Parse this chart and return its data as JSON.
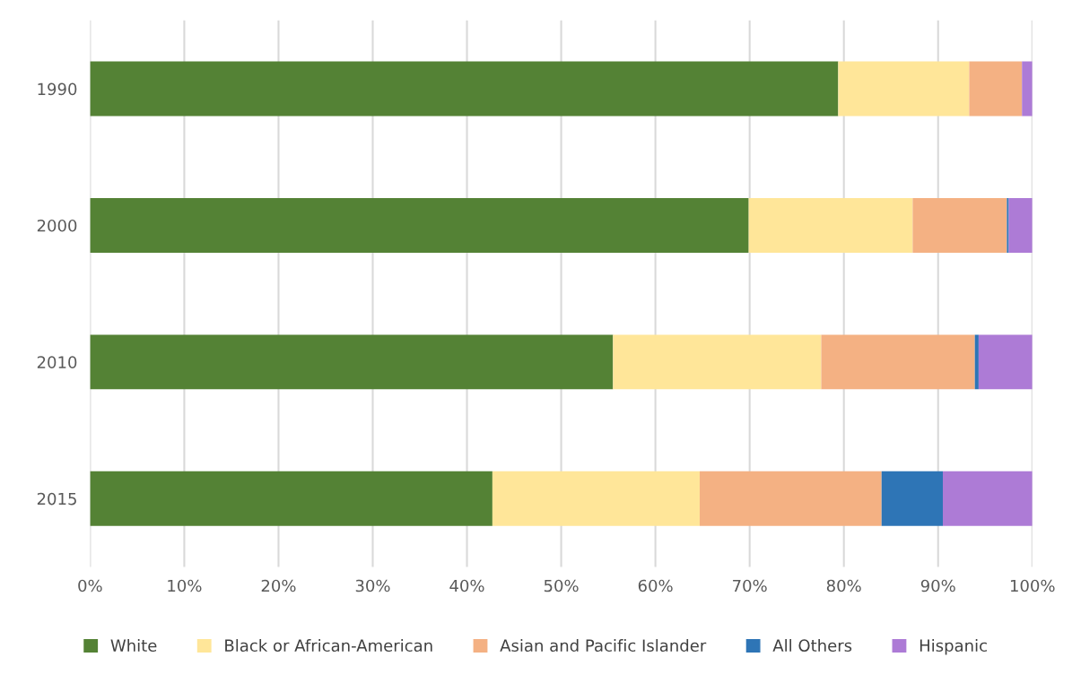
{
  "chart_data": {
    "type": "bar",
    "orientation": "horizontal",
    "stacked": true,
    "categories": [
      "1990",
      "2000",
      "2010",
      "2015"
    ],
    "series": [
      {
        "name": "White",
        "color": "#548235",
        "values": [
          79.4,
          69.9,
          55.5,
          42.7
        ]
      },
      {
        "name": "Black or African-American",
        "color": "#ffe699",
        "values": [
          13.9,
          17.4,
          22.1,
          22.0
        ]
      },
      {
        "name": "Asian and Pacific Islander",
        "color": "#f4b183",
        "values": [
          5.6,
          10.0,
          16.3,
          19.3
        ]
      },
      {
        "name": "All Others",
        "color": "#2e75b6",
        "values": [
          0,
          0.2,
          0.4,
          6.5
        ]
      },
      {
        "name": "Hispanic",
        "color": "#ad7bd6",
        "values": [
          1.1,
          2.5,
          5.7,
          9.5
        ]
      }
    ],
    "xlim": [
      0,
      100
    ],
    "xticks": [
      {
        "value": 0,
        "label": "0%"
      },
      {
        "value": 10,
        "label": "10%"
      },
      {
        "value": 20,
        "label": "20%"
      },
      {
        "value": 30,
        "label": "30%"
      },
      {
        "value": 40,
        "label": "40%"
      },
      {
        "value": 50,
        "label": "50%"
      },
      {
        "value": 60,
        "label": "60%"
      },
      {
        "value": 70,
        "label": "70%"
      },
      {
        "value": 80,
        "label": "80%"
      },
      {
        "value": 90,
        "label": "90%"
      },
      {
        "value": 100,
        "label": "100%"
      }
    ],
    "grid": "x",
    "legend": "bottom"
  }
}
